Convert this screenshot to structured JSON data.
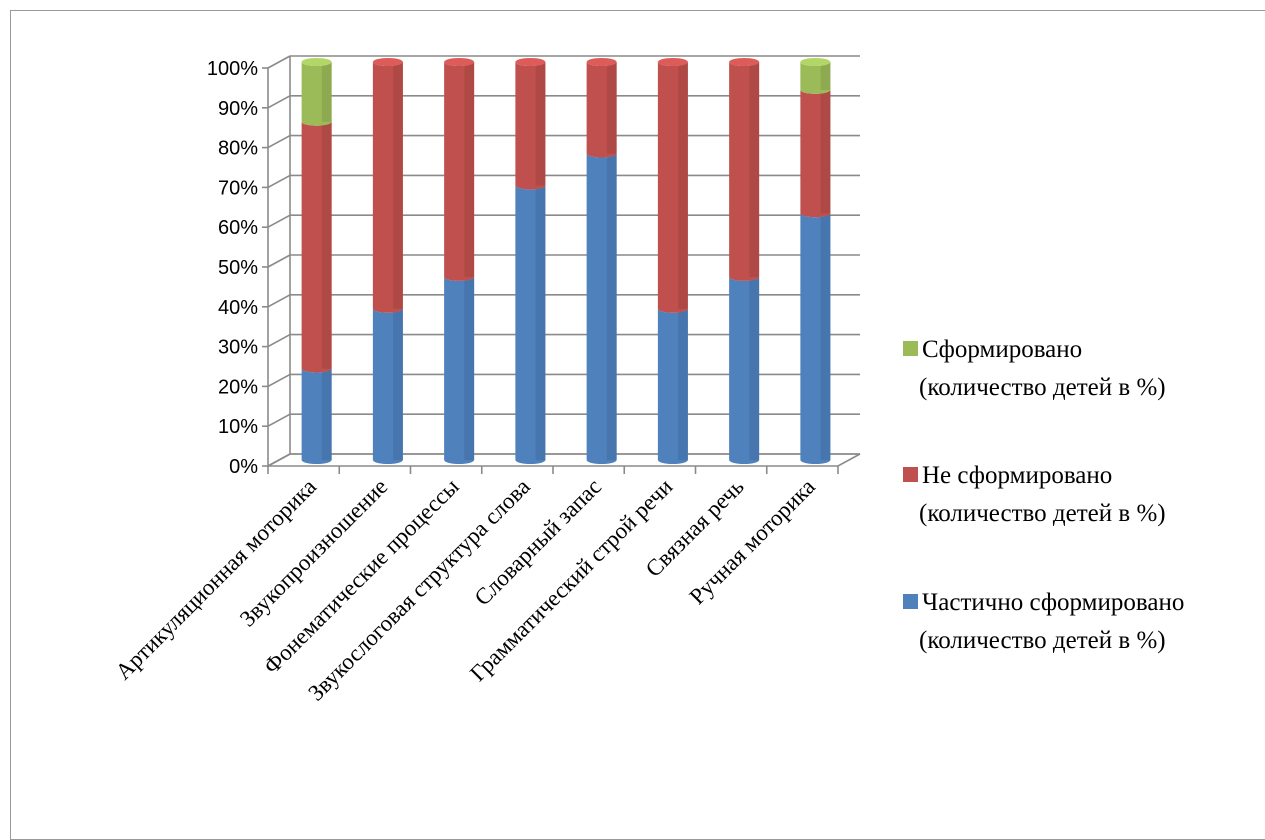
{
  "chart_data": {
    "type": "bar",
    "stacked": true,
    "percent": true,
    "style": "3d-cylinder",
    "categories": [
      "Артикуляционная моторика",
      "Звукопроизношение",
      "Фонематические процессы",
      "Звукослоговая структура слова",
      "Словарный запас",
      "Грамматический строй речи",
      "Связная речь",
      "Ручная моторика"
    ],
    "series": [
      {
        "name_lines": [
          "Частично сформировано",
          "(количество детей в %)"
        ],
        "color": "#4f81bd",
        "values": [
          23,
          38,
          46,
          69,
          77,
          38,
          46,
          62
        ]
      },
      {
        "name_lines": [
          "Не сформировано",
          "(количество детей в %)"
        ],
        "color": "#c0504d",
        "values": [
          62,
          62,
          54,
          31,
          23,
          62,
          54,
          31
        ]
      },
      {
        "name_lines": [
          "Сформировано",
          "(количество детей в %)"
        ],
        "color": "#9bbb59",
        "values": [
          15,
          0,
          0,
          0,
          0,
          0,
          0,
          7
        ]
      }
    ],
    "yticks": [
      "0%",
      "10%",
      "20%",
      "30%",
      "40%",
      "50%",
      "60%",
      "70%",
      "80%",
      "90%",
      "100%"
    ],
    "ylim": [
      0,
      100
    ],
    "grid": true,
    "legend_position": "right",
    "legend_order": [
      2,
      1,
      0
    ]
  }
}
